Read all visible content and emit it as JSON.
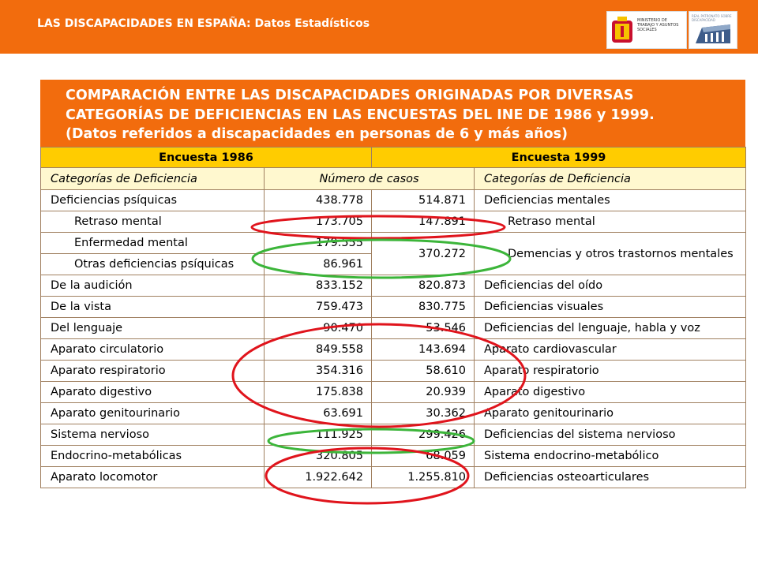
{
  "header": {
    "doc_title": "LAS DISCAPACIDADES EN ESPAÑA: Datos Estadísticos",
    "logo_ministerio_text": "MINISTERIO DE TRABAJO Y ASUNTOS SOCIALES",
    "logo_imserso_text": "REAL PATRONATO SOBRE DISCAPACIDAD"
  },
  "table_title": {
    "line1": "COMPARACIÓN ENTRE LAS DISCAPACIDADES ORIGINADAS POR DIVERSAS",
    "line2": "CATEGORÍAS DE DEFICIENCIAS EN LAS ENCUESTAS DEL INE DE 1986 y 1999.",
    "line3": "(Datos referidos a discapacidades en personas de 6 y más años)"
  },
  "surveys": {
    "left": "Encuesta 1986",
    "right": "Encuesta 1999"
  },
  "columns": {
    "cat_1986": "Categorías de Deficiencia",
    "cases": "Número de casos",
    "cat_1999": "Categorías de Deficiencia"
  },
  "rows": [
    {
      "cat1986": "Deficiencias psíquicas",
      "n1986": "438.778",
      "n1999": "514.871",
      "cat1999": "Deficiencias mentales"
    },
    {
      "cat1986": "Retraso mental",
      "n1986": "173.705",
      "n1999": "147.891",
      "cat1999": "Retraso mental"
    },
    {
      "cat1986": "Enfermedad mental",
      "n1986": "179.555",
      "n1999": "370.272",
      "cat1999": "Demencias y otros trastornos mentales"
    },
    {
      "cat1986": "Otras deficiencias psíquicas",
      "n1986": "86.961"
    },
    {
      "cat1986": "De la audición",
      "n1986": "833.152",
      "n1999": "820.873",
      "cat1999": "Deficiencias del oído"
    },
    {
      "cat1986": "De la vista",
      "n1986": "759.473",
      "n1999": "830.775",
      "cat1999": "Deficiencias visuales"
    },
    {
      "cat1986": "Del lenguaje",
      "n1986": "90.470",
      "n1999": "53.546",
      "cat1999": "Deficiencias del lenguaje, habla y voz"
    },
    {
      "cat1986": "Aparato circulatorio",
      "n1986": "849.558",
      "n1999": "143.694",
      "cat1999": "Aparato cardiovascular"
    },
    {
      "cat1986": "Aparato respiratorio",
      "n1986": "354.316",
      "n1999": "58.610",
      "cat1999": "Aparato respiratorio"
    },
    {
      "cat1986": "Aparato digestivo",
      "n1986": "175.838",
      "n1999": "20.939",
      "cat1999": "Aparato digestivo"
    },
    {
      "cat1986": "Aparato genitourinario",
      "n1986": "63.691",
      "n1999": "30.362",
      "cat1999": "Aparato genitourinario"
    },
    {
      "cat1986": "Sistema nervioso",
      "n1986": "111.925",
      "n1999": "299.426",
      "cat1999": "Deficiencias del sistema nervioso"
    },
    {
      "cat1986": "Endocrino-metabólicas",
      "n1986": "320.805",
      "n1999": "68.059",
      "cat1999": "Sistema endocrino-metabólico"
    },
    {
      "cat1986": "Aparato locomotor",
      "n1986": "1.922.642",
      "n1999": "1.255.810",
      "cat1999": "Deficiencias osteoarticulares"
    }
  ],
  "colors": {
    "brand_orange": "#f26c0d",
    "survey_header": "#ffcc00",
    "column_header": "#fff8cf",
    "highlight_red": "#e0141c",
    "highlight_green": "#3cb53a"
  }
}
